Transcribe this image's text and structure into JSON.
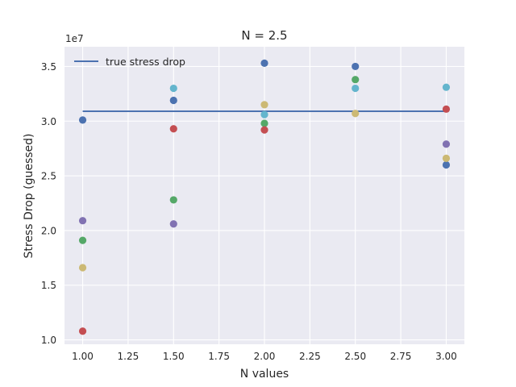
{
  "chart_data": {
    "type": "scatter",
    "title": "N = 2.5",
    "xlabel": "N values",
    "ylabel": "Stress Drop (guessed)",
    "y_offset_label": "1e7",
    "xlim": [
      0.9,
      3.1
    ],
    "ylim": [
      0.96,
      3.68
    ],
    "x_ticks": [
      1.0,
      1.25,
      1.5,
      1.75,
      2.0,
      2.25,
      2.5,
      2.75,
      3.0
    ],
    "x_tick_labels": [
      "1.00",
      "1.25",
      "1.50",
      "1.75",
      "2.00",
      "2.25",
      "2.50",
      "2.75",
      "3.00"
    ],
    "y_ticks": [
      1.0,
      1.5,
      2.0,
      2.5,
      3.0,
      3.5
    ],
    "y_tick_labels": [
      "1.0",
      "1.5",
      "2.0",
      "2.5",
      "3.0",
      "3.5"
    ],
    "grid": true,
    "legend_position": "top-left",
    "line": {
      "name": "true stress drop",
      "x": [
        1.0,
        3.0
      ],
      "y": [
        3.09,
        3.09
      ],
      "color": "#4c72b0"
    },
    "series": [
      {
        "color": "#4c72b0",
        "x": [
          1.0,
          1.5,
          2.0,
          2.5,
          3.0
        ],
        "y": [
          3.01,
          3.19,
          3.53,
          3.5,
          2.6
        ]
      },
      {
        "color": "#55a868",
        "x": [
          1.0,
          1.5,
          2.0,
          2.5
        ],
        "y": [
          1.91,
          2.28,
          2.98,
          3.38
        ]
      },
      {
        "color": "#c44e52",
        "x": [
          1.0,
          1.5,
          2.0,
          3.0
        ],
        "y": [
          1.08,
          2.93,
          2.92,
          3.11
        ]
      },
      {
        "color": "#8172b2",
        "x": [
          1.0,
          1.5,
          3.0
        ],
        "y": [
          2.09,
          2.06,
          2.79
        ]
      },
      {
        "color": "#ccb974",
        "x": [
          1.0,
          2.0,
          2.5,
          3.0
        ],
        "y": [
          1.66,
          3.15,
          3.07,
          2.66
        ]
      },
      {
        "color": "#64b5cd",
        "x": [
          1.5,
          2.0,
          2.5,
          3.0
        ],
        "y": [
          3.3,
          3.06,
          3.3,
          3.31
        ]
      }
    ]
  }
}
